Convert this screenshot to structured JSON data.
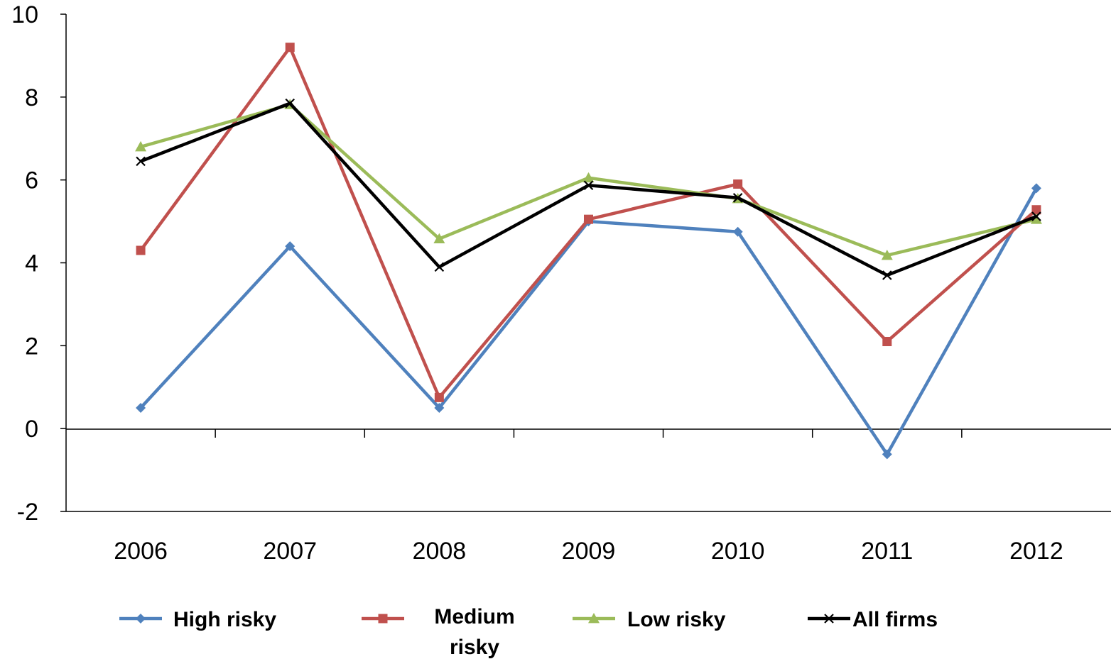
{
  "chart_data": {
    "type": "line",
    "title": "",
    "xlabel": "",
    "ylabel": "",
    "categories": [
      "2006",
      "2007",
      "2008",
      "2009",
      "2010",
      "2011",
      "2012"
    ],
    "ylim": [
      -2,
      10
    ],
    "yticks": [
      "-2",
      "0",
      "2",
      "4",
      "6",
      "8",
      "10"
    ],
    "grid": false,
    "legend_position": "bottom",
    "series": [
      {
        "name": "High risky",
        "color": "#4F81BD",
        "marker": "diamond",
        "values": [
          0.5,
          4.4,
          0.5,
          5.0,
          4.75,
          -0.62,
          5.8
        ]
      },
      {
        "name": "Medium risky",
        "color": "#C0504D",
        "marker": "square",
        "values": [
          4.3,
          9.2,
          0.75,
          5.05,
          5.9,
          2.1,
          5.28
        ]
      },
      {
        "name": "Low risky",
        "color": "#9BBB59",
        "marker": "triangle",
        "values": [
          6.8,
          7.82,
          4.58,
          6.05,
          5.55,
          4.18,
          5.05
        ]
      },
      {
        "name": "All firms",
        "color": "#000000",
        "marker": "x",
        "values": [
          6.45,
          7.85,
          3.9,
          5.87,
          5.57,
          3.7,
          5.12
        ]
      }
    ]
  }
}
